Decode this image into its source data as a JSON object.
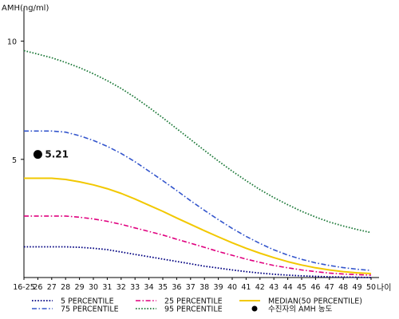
{
  "chart_data": {
    "type": "line",
    "ylabel": "AMH(ng/ml)",
    "xlabel": "나이",
    "ylim": [
      0,
      11
    ],
    "yticks": [
      5,
      10
    ],
    "grid": false,
    "legend_position": "bottom",
    "categories": [
      "16-25",
      "26",
      "27",
      "28",
      "29",
      "30",
      "31",
      "32",
      "33",
      "34",
      "35",
      "36",
      "37",
      "38",
      "39",
      "40",
      "41",
      "42",
      "43",
      "44",
      "45",
      "46",
      "47",
      "48",
      "49",
      "50"
    ],
    "series": [
      {
        "name": "5 PERCENTILE",
        "color": "#000080",
        "dash": "dotted",
        "values": [
          1.3,
          1.3,
          1.3,
          1.3,
          1.28,
          1.24,
          1.18,
          1.08,
          0.98,
          0.88,
          0.78,
          0.68,
          0.58,
          0.48,
          0.4,
          0.32,
          0.25,
          0.19,
          0.14,
          0.1,
          0.07,
          0.05,
          0.03,
          0.02,
          0.01,
          0.0
        ]
      },
      {
        "name": "25 PERCENTILE",
        "color": "#e0007f",
        "dash": "dashdot",
        "values": [
          2.6,
          2.6,
          2.6,
          2.6,
          2.55,
          2.48,
          2.38,
          2.25,
          2.1,
          1.95,
          1.8,
          1.62,
          1.45,
          1.28,
          1.1,
          0.94,
          0.78,
          0.64,
          0.51,
          0.41,
          0.32,
          0.25,
          0.19,
          0.15,
          0.12,
          0.1
        ]
      },
      {
        "name": "MEDIAN(50 PERCENTILE)",
        "color": "#f2c800",
        "dash": "solid",
        "values": [
          4.2,
          4.2,
          4.2,
          4.15,
          4.05,
          3.92,
          3.76,
          3.56,
          3.32,
          3.06,
          2.8,
          2.52,
          2.25,
          1.98,
          1.72,
          1.47,
          1.24,
          1.03,
          0.84,
          0.67,
          0.53,
          0.41,
          0.32,
          0.25,
          0.2,
          0.17
        ]
      },
      {
        "name": "75 PERCENTILE",
        "color": "#3355cc",
        "dash": "dashdot",
        "values": [
          6.2,
          6.2,
          6.2,
          6.15,
          6.0,
          5.8,
          5.55,
          5.25,
          4.9,
          4.5,
          4.1,
          3.68,
          3.25,
          2.84,
          2.45,
          2.08,
          1.74,
          1.44,
          1.17,
          0.95,
          0.77,
          0.62,
          0.51,
          0.42,
          0.35,
          0.3
        ]
      },
      {
        "name": "95 PERCENTILE",
        "color": "#1e7a3a",
        "dash": "dotted",
        "values": [
          9.6,
          9.45,
          9.3,
          9.1,
          8.88,
          8.62,
          8.33,
          8.0,
          7.62,
          7.2,
          6.76,
          6.3,
          5.84,
          5.38,
          4.93,
          4.5,
          4.1,
          3.72,
          3.38,
          3.08,
          2.8,
          2.56,
          2.35,
          2.18,
          2.03,
          1.9
        ]
      }
    ],
    "marker": {
      "name": "수진자의 AMH 농도",
      "category": "26",
      "value": 5.21,
      "label": "5.21",
      "color": "#000000"
    },
    "legend_order": [
      "5 PERCENTILE",
      "25 PERCENTILE",
      "MEDIAN(50 PERCENTILE)",
      "75 PERCENTILE",
      "95 PERCENTILE",
      "수진자의 AMH 농도"
    ]
  }
}
